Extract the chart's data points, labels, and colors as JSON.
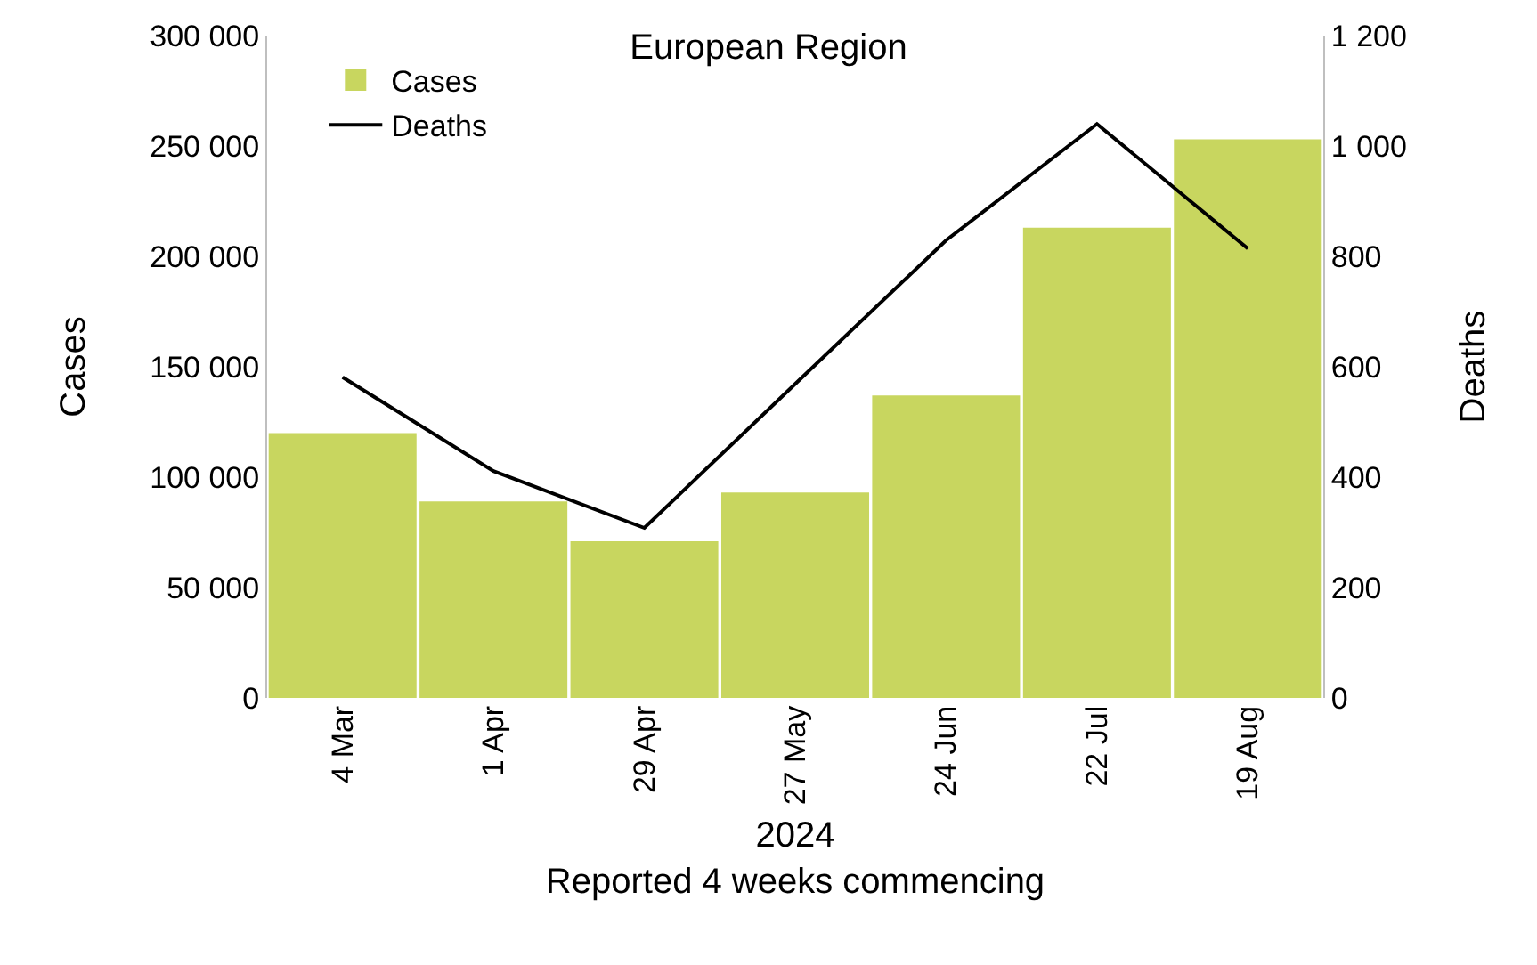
{
  "chart_data": {
    "type": "bar",
    "title": "European Region",
    "xlabel": "2024\nReported 4 weeks commencing",
    "ylabel": "Cases",
    "y2label": "Deaths",
    "categories": [
      "4 Mar",
      "1 Apr",
      "29 Apr",
      "27 May",
      "24 Jun",
      "22 Jul",
      "19 Aug"
    ],
    "series": [
      {
        "name": "Cases",
        "color": "#c8d65f",
        "values": [
          120000,
          89000,
          71000,
          93000,
          137000,
          213000,
          253000
        ]
      },
      {
        "name": "Deaths",
        "type": "line",
        "axis": "y2",
        "color": "#000000",
        "values": [
          581,
          411,
          308,
          569,
          829,
          1040,
          814
        ]
      }
    ],
    "ylim": [
      0,
      300000
    ],
    "yticks": [
      0,
      {
        "value": 50000,
        "label": "50 000"
      },
      {
        "value": 100000,
        "label": "100 000"
      },
      {
        "value": 150000,
        "label": "150 000"
      },
      {
        "value": 200000,
        "label": "200 000"
      },
      {
        "value": 250000,
        "label": "250 000"
      },
      {
        "value": 300000,
        "label": "300 000"
      }
    ],
    "y2lim": [
      0,
      1200
    ],
    "y2ticks": [
      0,
      200,
      400,
      600,
      800,
      {
        "value": 1000,
        "label": "1 000"
      },
      {
        "value": 1200,
        "label": "1 200"
      }
    ],
    "legend": "top left",
    "marker": "none",
    "line_style": "solid"
  }
}
